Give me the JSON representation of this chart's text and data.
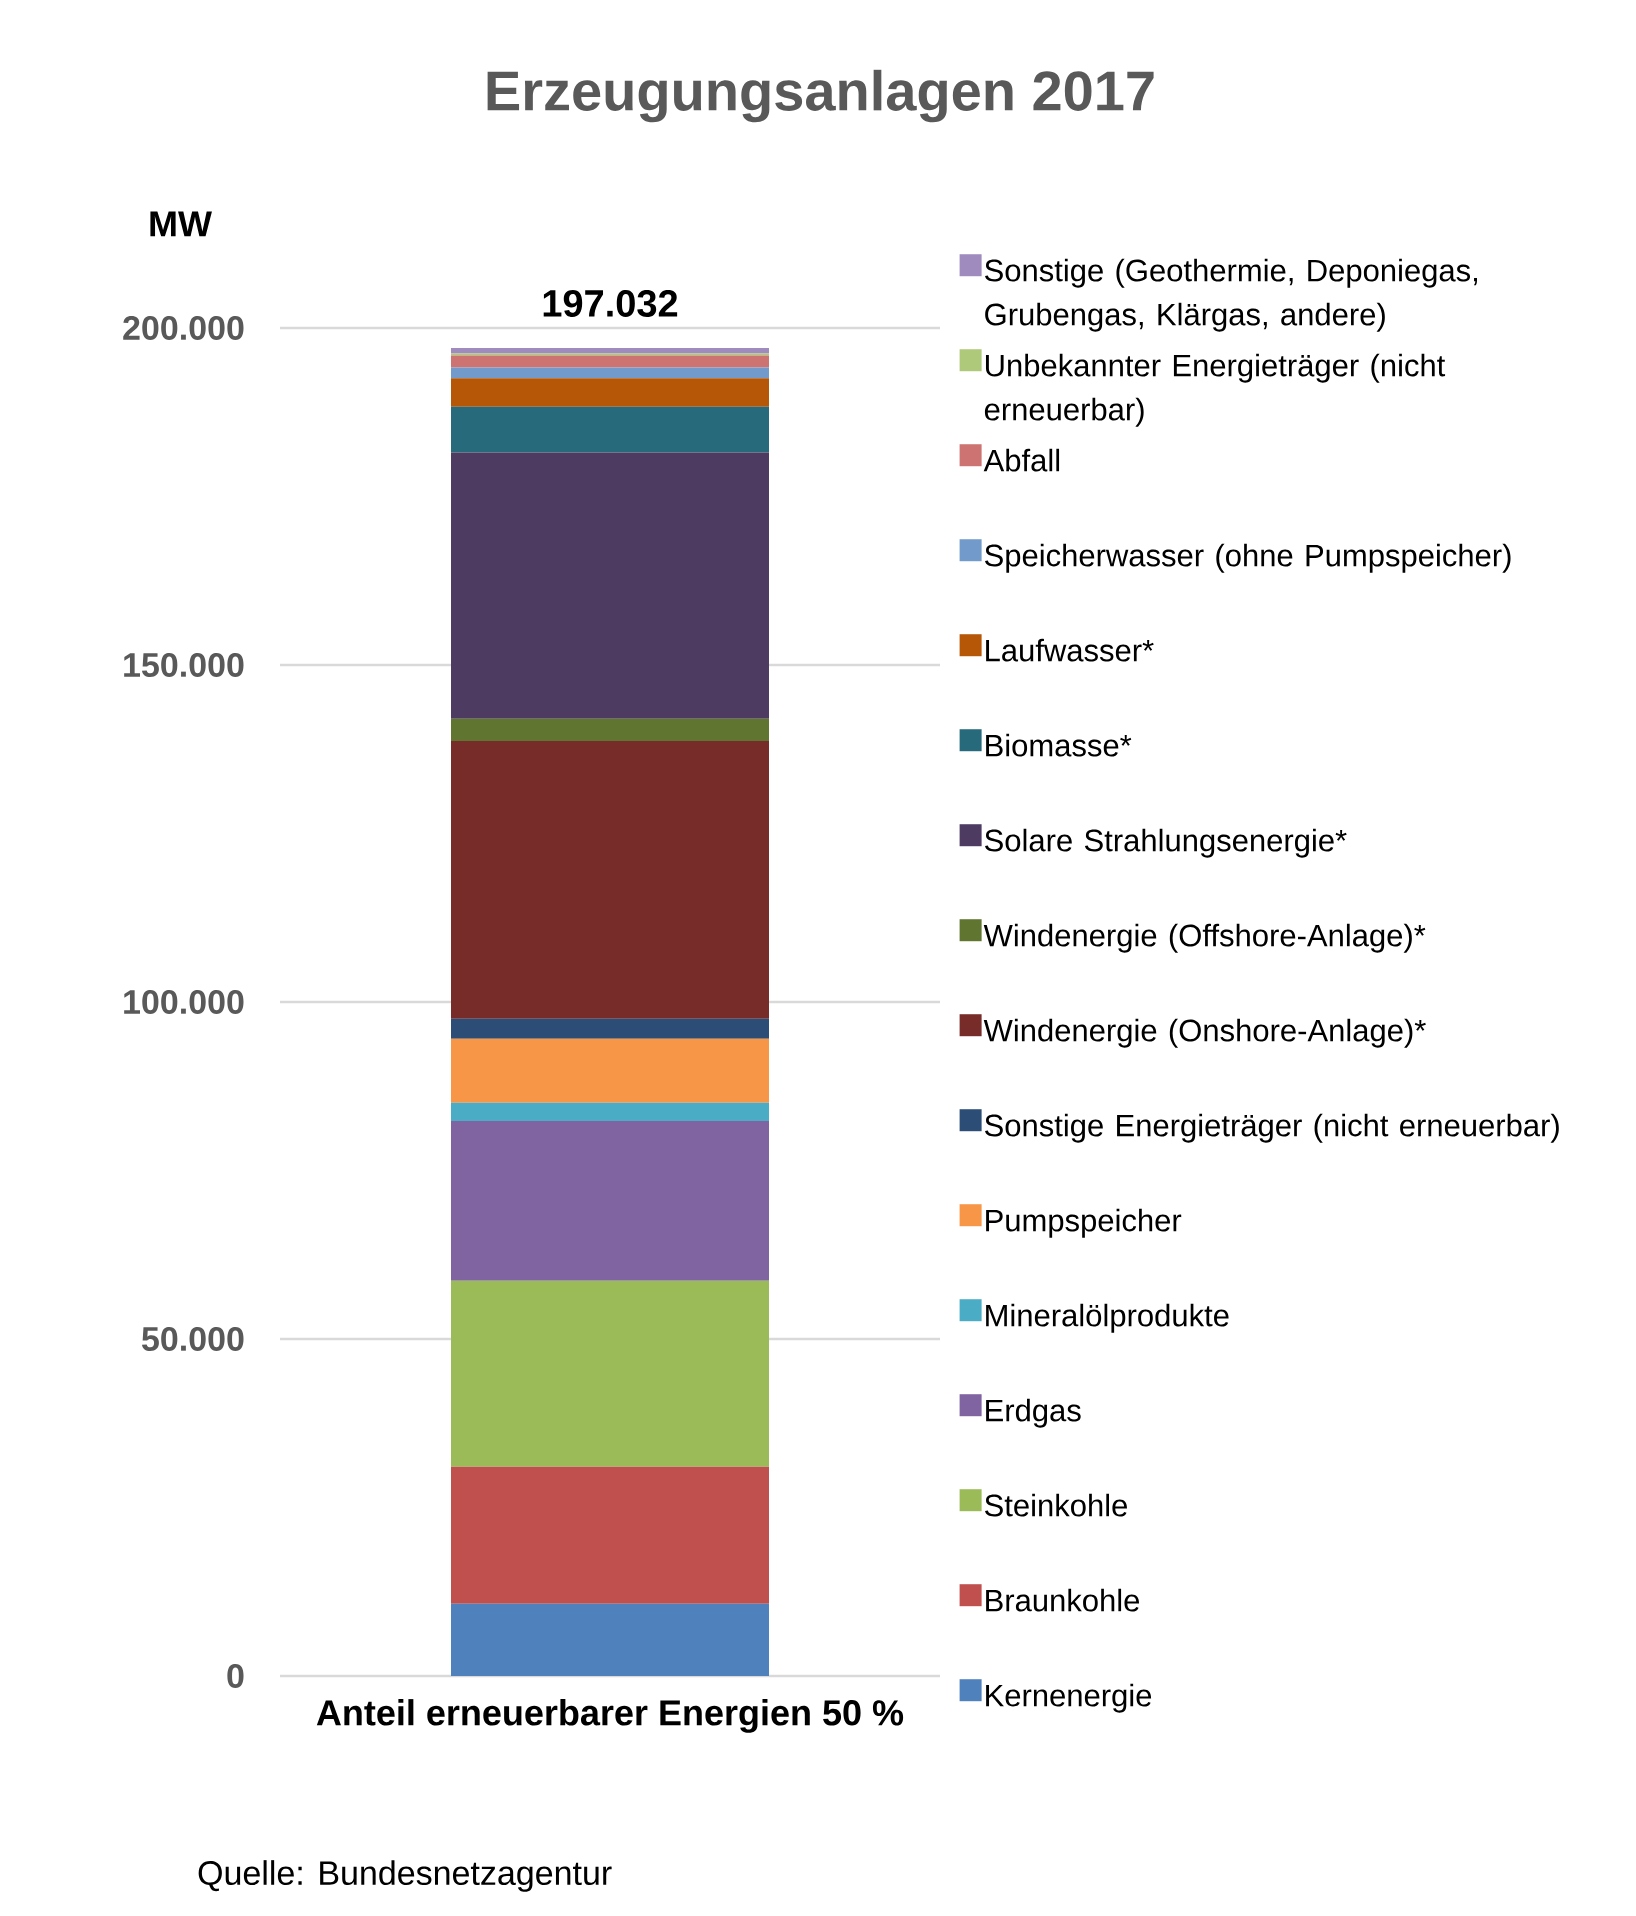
{
  "chart_data": {
    "type": "bar",
    "title": "Erzeugungsanlagen 2017",
    "ylabel": "MW",
    "xlabel": "Anteil erneuerbarer Energien 50 %",
    "categories": [
      null
    ],
    "stacked": true,
    "tick_labels": "y",
    "grid": "y",
    "legend": "right",
    "ylim": [
      0,
      200000
    ],
    "yticks": [
      {
        "value": 0,
        "label": "0"
      },
      {
        "value": 50000,
        "label": "50.000"
      },
      {
        "value": 100000,
        "label": "100.000"
      },
      {
        "value": 150000,
        "label": "150.000"
      },
      {
        "value": 200000,
        "label": "200.000"
      }
    ],
    "totals": [
      "197.032"
    ],
    "annotations": [
      "Quelle: Bundesnetzagentur"
    ],
    "series": [
      {
        "name": "Kernenergie",
        "color": "#4f81bd",
        "values": [
          10732
        ]
      },
      {
        "name": "Braunkohle",
        "color": "#c0504d",
        "values": [
          20300
        ]
      },
      {
        "name": "Steinkohle",
        "color": "#9bbb59",
        "values": [
          27600
        ]
      },
      {
        "name": "Erdgas",
        "color": "#8064a2",
        "values": [
          23700
        ]
      },
      {
        "name": "Mineralölprodukte",
        "color": "#4bacc6",
        "values": [
          2700
        ]
      },
      {
        "name": "Pumpspeicher",
        "color": "#f79646",
        "values": [
          9500
        ]
      },
      {
        "name": "Sonstige Energieträger (nicht erneuerbar)",
        "color": "#2c4d75",
        "values": [
          3000
        ]
      },
      {
        "name": "Windenergie (Onshore-Anlage)*",
        "color": "#772c2a",
        "values": [
          41200
        ]
      },
      {
        "name": "Windenergie (Offshore-Anlage)*",
        "color": "#5f7530",
        "values": [
          3300
        ]
      },
      {
        "name": "Solare Strahlungsenergie*",
        "color": "#4d3b62",
        "values": [
          39500
        ]
      },
      {
        "name": "Biomasse*",
        "color": "#276a7c",
        "values": [
          6800
        ]
      },
      {
        "name": "Laufwasser*",
        "color": "#b65708",
        "values": [
          4200
        ]
      },
      {
        "name": "Speicherwasser (ohne Pumpspeicher)",
        "color": "#729aca",
        "values": [
          1600
        ]
      },
      {
        "name": "Abfall",
        "color": "#cd7371",
        "values": [
          1800
        ]
      },
      {
        "name": "Unbekannter Energieträger (nicht erneuerbar)",
        "color": "#afc97a",
        "values": [
          300
        ]
      },
      {
        "name": "Sonstige (Geothermie, Deponiegas, Grubengas, Klärgas, andere)",
        "color": "#a08bbf",
        "values": [
          800
        ]
      }
    ]
  }
}
